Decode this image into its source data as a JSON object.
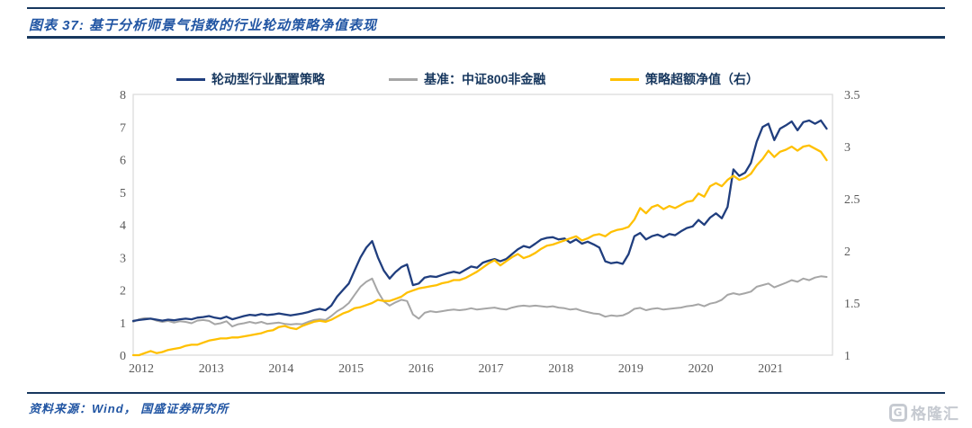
{
  "header": {
    "title": "图表 37:  基于分析师景气指数的行业轮动策略净值表现"
  },
  "footer": {
    "source": "资料来源：Wind， 国盛证券研究所"
  },
  "watermark": {
    "icon": "gelonghui-logo",
    "text": "格隆汇"
  },
  "colors": {
    "rule_navy": "#17375E",
    "title_blue": "#2155A3",
    "strategy_line": "#203E7E",
    "benchmark_line": "#A6A6A6",
    "excess_line": "#FFC000",
    "axis_text": "#595959",
    "plot_border": "#D9D9D9"
  },
  "chart_data": {
    "type": "line",
    "title": "",
    "xlabel": "",
    "ylabel_left": "",
    "ylabel_right": "",
    "grid": false,
    "legend_position": "top",
    "x_start_year": 2012,
    "months_per_point": 1,
    "x_tick_labels": [
      "2012",
      "2013",
      "2014",
      "2015",
      "2016",
      "2017",
      "2018",
      "2019",
      "2020",
      "2021"
    ],
    "left_axis": {
      "min": 0,
      "max": 8,
      "ticks": [
        0,
        1,
        2,
        3,
        4,
        5,
        6,
        7,
        8
      ]
    },
    "right_axis": {
      "min": 1,
      "max": 3.5,
      "ticks": [
        1,
        1.5,
        2,
        2.5,
        3,
        3.5
      ]
    },
    "series": [
      {
        "name": "轮动型行业配置策略",
        "axis": "left",
        "color": "#203E7E",
        "values": [
          1.05,
          1.08,
          1.1,
          1.12,
          1.09,
          1.06,
          1.09,
          1.07,
          1.1,
          1.12,
          1.1,
          1.15,
          1.17,
          1.2,
          1.15,
          1.12,
          1.18,
          1.1,
          1.15,
          1.2,
          1.24,
          1.22,
          1.26,
          1.23,
          1.25,
          1.28,
          1.25,
          1.22,
          1.25,
          1.28,
          1.32,
          1.38,
          1.42,
          1.38,
          1.52,
          1.8,
          2.0,
          2.2,
          2.6,
          3.0,
          3.3,
          3.5,
          3.0,
          2.6,
          2.35,
          2.55,
          2.7,
          2.78,
          2.15,
          2.2,
          2.38,
          2.42,
          2.4,
          2.46,
          2.52,
          2.56,
          2.52,
          2.62,
          2.72,
          2.68,
          2.84,
          2.9,
          2.95,
          2.88,
          2.95,
          3.1,
          3.25,
          3.35,
          3.3,
          3.42,
          3.55,
          3.6,
          3.62,
          3.55,
          3.58,
          3.45,
          3.55,
          3.42,
          3.48,
          3.4,
          3.3,
          2.88,
          2.82,
          2.85,
          2.8,
          3.1,
          3.65,
          3.75,
          3.55,
          3.65,
          3.7,
          3.62,
          3.72,
          3.68,
          3.8,
          3.9,
          3.95,
          4.15,
          4.0,
          4.22,
          4.35,
          4.2,
          4.55,
          5.7,
          5.5,
          5.6,
          5.9,
          6.55,
          7.0,
          7.1,
          6.6,
          6.95,
          7.05,
          7.17,
          6.9,
          7.15,
          7.2,
          7.1,
          7.2,
          6.95
        ]
      },
      {
        "name": "基准：中证800非金融",
        "axis": "left",
        "color": "#A6A6A6",
        "values": [
          1.02,
          1.1,
          1.14,
          1.12,
          1.06,
          1.02,
          1.05,
          1.0,
          1.04,
          1.02,
          0.98,
          1.06,
          1.08,
          1.05,
          0.95,
          0.98,
          1.04,
          0.88,
          0.95,
          0.98,
          1.02,
          0.98,
          1.02,
          0.96,
          0.98,
          1.0,
          0.96,
          0.94,
          0.96,
          0.95,
          1.02,
          1.08,
          1.1,
          1.08,
          1.2,
          1.35,
          1.45,
          1.6,
          1.85,
          2.1,
          2.25,
          2.35,
          1.95,
          1.65,
          1.52,
          1.62,
          1.7,
          1.66,
          1.25,
          1.12,
          1.3,
          1.35,
          1.32,
          1.35,
          1.38,
          1.4,
          1.38,
          1.4,
          1.44,
          1.4,
          1.42,
          1.44,
          1.46,
          1.42,
          1.4,
          1.46,
          1.5,
          1.52,
          1.5,
          1.52,
          1.5,
          1.48,
          1.5,
          1.46,
          1.44,
          1.4,
          1.42,
          1.36,
          1.32,
          1.28,
          1.26,
          1.18,
          1.22,
          1.2,
          1.22,
          1.3,
          1.42,
          1.45,
          1.38,
          1.42,
          1.44,
          1.4,
          1.42,
          1.44,
          1.46,
          1.5,
          1.52,
          1.56,
          1.5,
          1.58,
          1.62,
          1.7,
          1.85,
          1.9,
          1.86,
          1.9,
          1.95,
          2.1,
          2.15,
          2.2,
          2.08,
          2.15,
          2.22,
          2.3,
          2.25,
          2.35,
          2.3,
          2.38,
          2.42,
          2.4
        ]
      },
      {
        "name": "策略超额净值（右）",
        "axis": "right",
        "color": "#FFC000",
        "values": [
          1.0,
          1.0,
          1.02,
          1.04,
          1.02,
          1.03,
          1.05,
          1.06,
          1.07,
          1.09,
          1.1,
          1.1,
          1.12,
          1.14,
          1.15,
          1.16,
          1.16,
          1.17,
          1.17,
          1.18,
          1.19,
          1.2,
          1.21,
          1.23,
          1.24,
          1.27,
          1.28,
          1.26,
          1.25,
          1.28,
          1.3,
          1.32,
          1.33,
          1.32,
          1.34,
          1.37,
          1.4,
          1.42,
          1.45,
          1.46,
          1.48,
          1.5,
          1.53,
          1.52,
          1.52,
          1.54,
          1.56,
          1.6,
          1.62,
          1.64,
          1.65,
          1.66,
          1.67,
          1.69,
          1.7,
          1.72,
          1.72,
          1.74,
          1.77,
          1.8,
          1.84,
          1.88,
          1.91,
          1.86,
          1.9,
          1.94,
          1.97,
          1.93,
          1.95,
          1.98,
          2.02,
          2.05,
          2.06,
          2.08,
          2.1,
          2.12,
          2.14,
          2.1,
          2.12,
          2.15,
          2.16,
          2.14,
          2.18,
          2.2,
          2.21,
          2.23,
          2.3,
          2.41,
          2.36,
          2.42,
          2.44,
          2.4,
          2.43,
          2.41,
          2.44,
          2.47,
          2.48,
          2.55,
          2.52,
          2.62,
          2.65,
          2.62,
          2.68,
          2.72,
          2.68,
          2.7,
          2.74,
          2.82,
          2.88,
          2.96,
          2.9,
          2.95,
          2.97,
          3.0,
          2.96,
          3.0,
          3.01,
          2.98,
          2.95,
          2.87
        ]
      }
    ]
  }
}
